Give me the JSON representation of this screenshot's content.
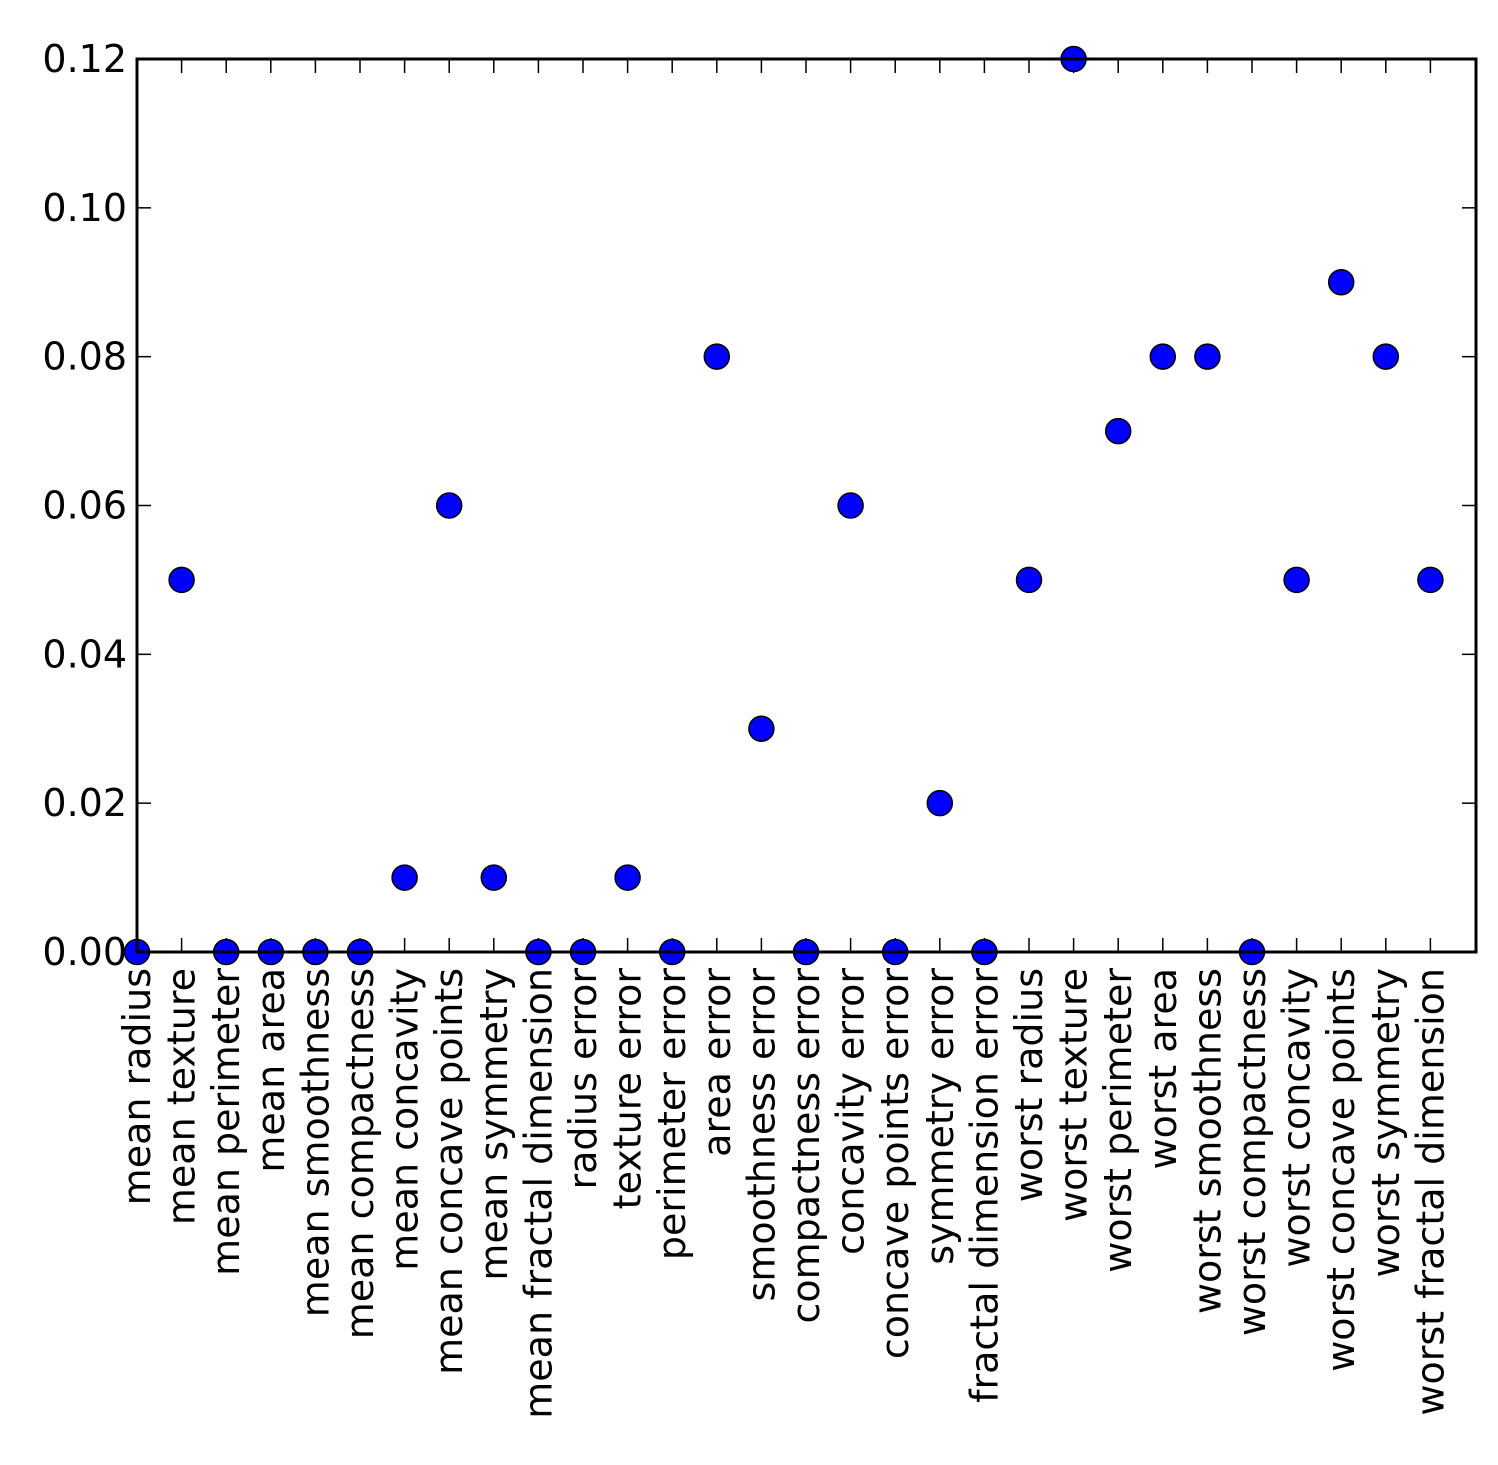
{
  "chart_data": {
    "type": "scatter",
    "title": "",
    "xlabel": "",
    "ylabel": "",
    "ylim": [
      0,
      0.12
    ],
    "yticks": [
      "0.00",
      "0.02",
      "0.04",
      "0.06",
      "0.08",
      "0.10",
      "0.12"
    ],
    "grid": false,
    "marker_color": "#0000ff",
    "categories": [
      "mean radius",
      "mean texture",
      "mean perimeter",
      "mean area",
      "mean smoothness",
      "mean compactness",
      "mean concavity",
      "mean concave points",
      "mean symmetry",
      "mean fractal dimension",
      "radius error",
      "texture error",
      "perimeter error",
      "area error",
      "smoothness error",
      "compactness error",
      "concavity error",
      "concave points error",
      "symmetry error",
      "fractal dimension error",
      "worst radius",
      "worst texture",
      "worst perimeter",
      "worst area",
      "worst smoothness",
      "worst compactness",
      "worst concavity",
      "worst concave points",
      "worst symmetry",
      "worst fractal dimension"
    ],
    "values": [
      0.0,
      0.05,
      0.0,
      0.0,
      0.0,
      0.0,
      0.01,
      0.06,
      0.01,
      0.0,
      0.0,
      0.01,
      0.0,
      0.08,
      0.03,
      0.0,
      0.06,
      0.0,
      0.02,
      0.0,
      0.05,
      0.12,
      0.07,
      0.08,
      0.08,
      0.0,
      0.05,
      0.09,
      0.08,
      0.05
    ]
  }
}
